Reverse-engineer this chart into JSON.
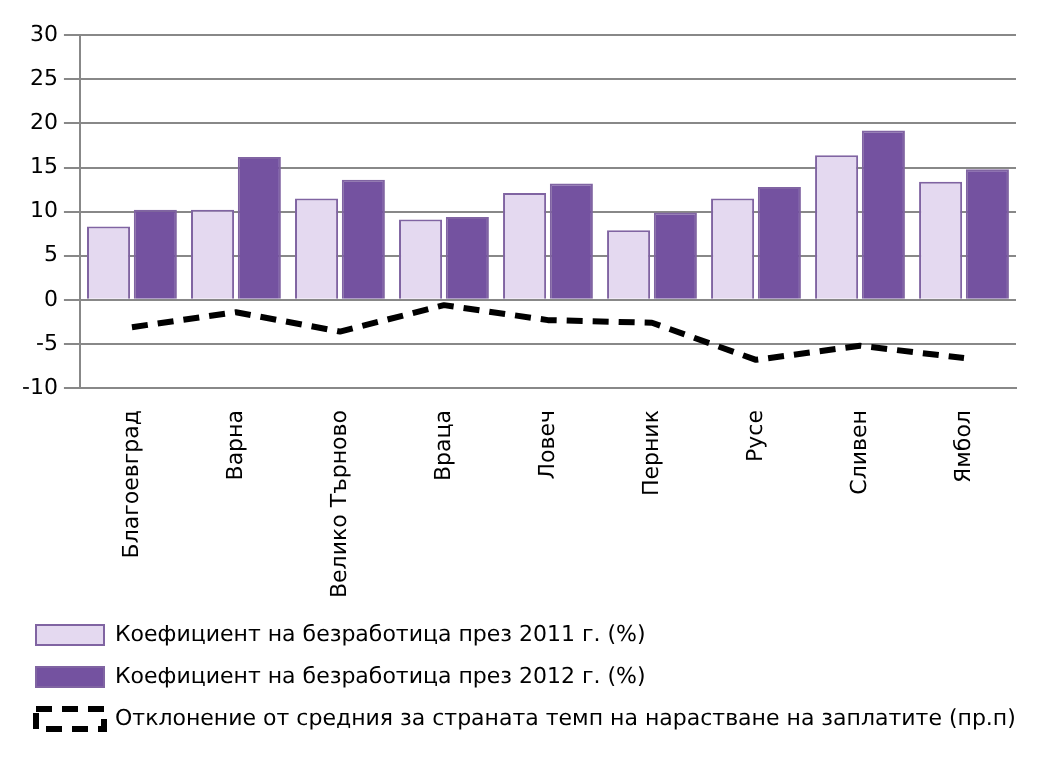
{
  "chart_data": {
    "type": "bar",
    "categories": [
      "Благоевград",
      "Варна",
      "Велико Търново",
      "Враца",
      "Ловеч",
      "Перник",
      "Русе",
      "Сливен",
      "Ямбол"
    ],
    "series": [
      {
        "name": "Коефициент на безработица през 2011 г. (%)",
        "color": "#e4d9f0",
        "values": [
          8.3,
          10.2,
          11.5,
          9.1,
          12.1,
          7.9,
          11.5,
          16.4,
          13.4
        ]
      },
      {
        "name": "Коефициент на безработица през 2012 г. (%)",
        "color": "#7452a0",
        "values": [
          10.2,
          16.2,
          13.6,
          9.4,
          13.2,
          9.9,
          12.8,
          19.2,
          14.8
        ]
      },
      {
        "name": "Отклонение от средния за страната темп на нарастване на заплатите (пр.п)",
        "type": "line",
        "color": "#000000",
        "line_style": "dashed",
        "marker": "none",
        "values": [
          -3.1,
          -1.4,
          -3.6,
          -0.6,
          -2.3,
          -2.6,
          -6.8,
          -5.2,
          -6.6
        ]
      }
    ],
    "ylim": [
      -10,
      30
    ],
    "yticks": [
      -10,
      -5,
      0,
      5,
      10,
      15,
      20,
      25,
      30
    ],
    "grid": "y",
    "legend": "bottom"
  }
}
